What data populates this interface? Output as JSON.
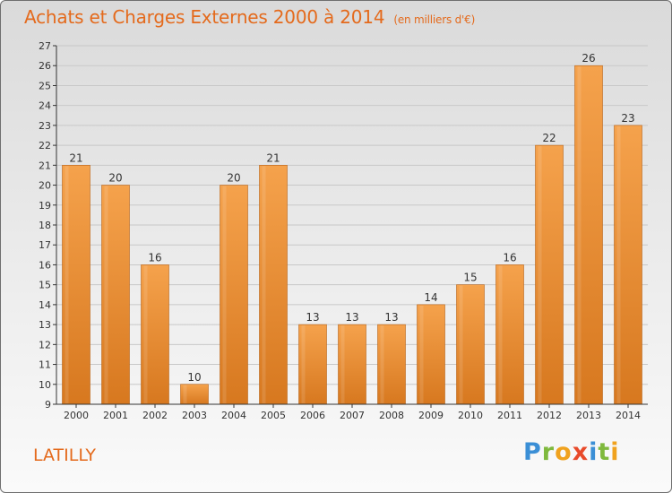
{
  "header": {
    "title": "Achats et Charges Externes 2000 à 2014",
    "subtitle": "(en milliers d'€)"
  },
  "footer": {
    "commune": "LATILLY",
    "brand": "Proxiti",
    "brand_letters": [
      "P",
      "r",
      "o",
      "x",
      "i",
      "t",
      "i"
    ]
  },
  "colors": {
    "bar_light": "#f5a24c",
    "bar_dark": "#d7781f",
    "title": "#e46a1c",
    "grid": "#c8c8c8"
  },
  "chart_data": {
    "type": "bar",
    "title": "Achats et Charges Externes 2000 à 2014",
    "subtitle": "(en milliers d'€)",
    "categories": [
      "2000",
      "2001",
      "2002",
      "2003",
      "2004",
      "2005",
      "2006",
      "2007",
      "2008",
      "2009",
      "2010",
      "2011",
      "2012",
      "2013",
      "2014"
    ],
    "values": [
      21,
      20,
      16,
      10,
      20,
      21,
      13,
      13,
      13,
      14,
      15,
      16,
      22,
      26,
      23
    ],
    "ylim": [
      9,
      27
    ],
    "yticks": [
      9,
      10,
      11,
      12,
      13,
      14,
      15,
      16,
      17,
      18,
      19,
      20,
      21,
      22,
      23,
      24,
      25,
      26,
      27
    ],
    "grid": true,
    "data_labels": true,
    "xlabel": "",
    "ylabel": ""
  }
}
